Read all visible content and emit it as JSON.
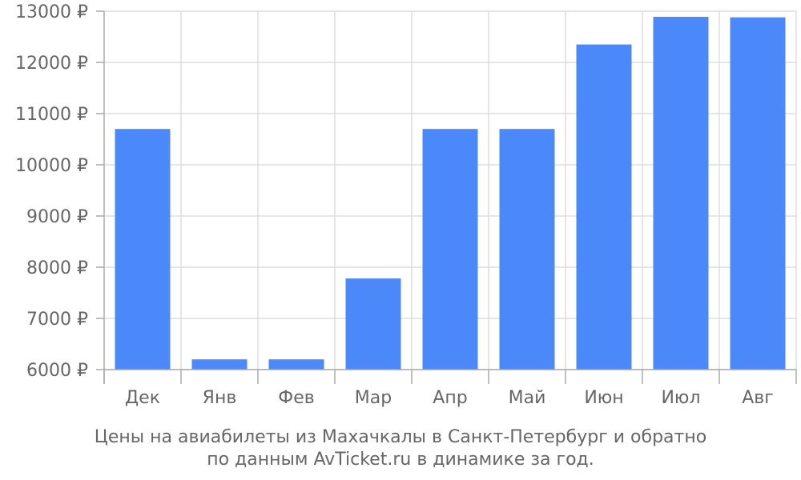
{
  "chart_data": {
    "type": "bar",
    "categories": [
      "Дек",
      "Янв",
      "Фев",
      "Мар",
      "Апр",
      "Май",
      "Июн",
      "Июл",
      "Авг"
    ],
    "values": [
      10700,
      6200,
      6200,
      7780,
      10700,
      10700,
      12350,
      12890,
      12880
    ],
    "ylim": [
      6000,
      13000
    ],
    "yticks": [
      6000,
      7000,
      8000,
      9000,
      10000,
      11000,
      12000,
      13000
    ],
    "ytick_suffix": " ₽",
    "grid": true,
    "bar_color": "#4b89fb",
    "grid_color": "#dddddd",
    "axis_color": "#aaaaaa",
    "text_color": "#666666"
  },
  "caption": {
    "line1": "Цены на авиабилеты из Махачкалы в Санкт-Петербург и обратно",
    "line2": "по данным AvTicket.ru в динамике за год."
  }
}
